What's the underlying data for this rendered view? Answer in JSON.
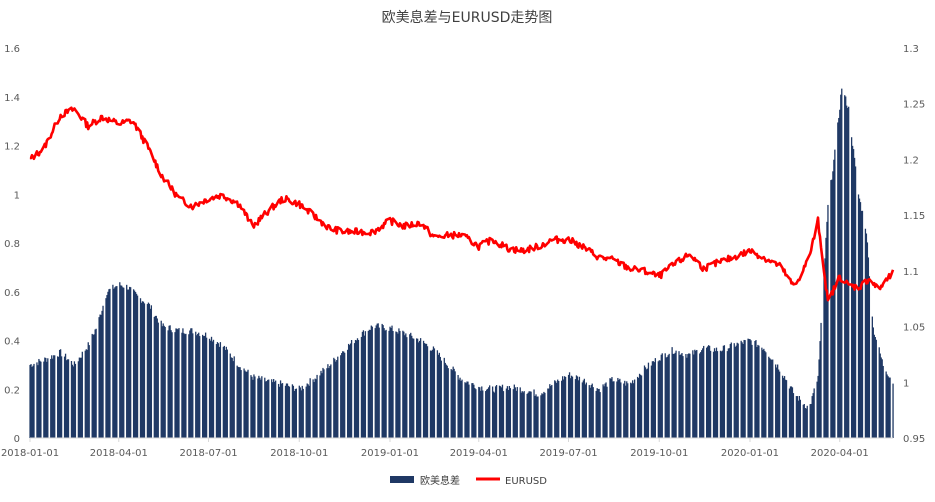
{
  "chart_data": {
    "type": "bar+line",
    "title": "欧美息差与EURUSD走势图",
    "x_ticks": [
      "2018-01-01",
      "2018-04-01",
      "2018-07-01",
      "2018-10-01",
      "2019-01-01",
      "2019-04-01",
      "2019-07-01",
      "2019-10-01",
      "2020-01-01",
      "2020-04-01"
    ],
    "left_axis": {
      "ticks": [
        "0",
        "0.2",
        "0.4",
        "0.6",
        "0.8",
        "1",
        "1.2",
        "1.4",
        "1.6"
      ],
      "min": 0,
      "max": 1.6
    },
    "right_axis": {
      "ticks": [
        "0.95",
        "1",
        "1.05",
        "1.1",
        "1.15",
        "1.2",
        "1.25",
        "1.3"
      ],
      "min": 0.95,
      "max": 1.3
    },
    "x_range": [
      "2018-01-01",
      "2020-05-25"
    ],
    "series": [
      {
        "name": "欧美息差",
        "kind": "bar",
        "axis": "left",
        "color": "#1f3864",
        "points": [
          [
            "2018-01-01",
            0.3
          ],
          [
            "2018-01-15",
            0.32
          ],
          [
            "2018-02-01",
            0.35
          ],
          [
            "2018-02-15",
            0.3
          ],
          [
            "2018-03-01",
            0.38
          ],
          [
            "2018-03-10",
            0.46
          ],
          [
            "2018-03-20",
            0.6
          ],
          [
            "2018-04-01",
            0.63
          ],
          [
            "2018-04-10",
            0.62
          ],
          [
            "2018-04-20",
            0.58
          ],
          [
            "2018-05-01",
            0.55
          ],
          [
            "2018-05-15",
            0.46
          ],
          [
            "2018-06-01",
            0.44
          ],
          [
            "2018-06-15",
            0.44
          ],
          [
            "2018-07-01",
            0.42
          ],
          [
            "2018-07-15",
            0.38
          ],
          [
            "2018-08-01",
            0.3
          ],
          [
            "2018-08-15",
            0.25
          ],
          [
            "2018-09-01",
            0.23
          ],
          [
            "2018-09-15",
            0.22
          ],
          [
            "2018-10-01",
            0.2
          ],
          [
            "2018-10-15",
            0.24
          ],
          [
            "2018-11-01",
            0.3
          ],
          [
            "2018-11-15",
            0.36
          ],
          [
            "2018-12-01",
            0.42
          ],
          [
            "2018-12-15",
            0.46
          ],
          [
            "2019-01-01",
            0.45
          ],
          [
            "2019-01-15",
            0.43
          ],
          [
            "2019-02-01",
            0.4
          ],
          [
            "2019-02-15",
            0.36
          ],
          [
            "2019-03-01",
            0.3
          ],
          [
            "2019-03-15",
            0.24
          ],
          [
            "2019-04-01",
            0.21
          ],
          [
            "2019-04-15",
            0.2
          ],
          [
            "2019-05-01",
            0.21
          ],
          [
            "2019-05-15",
            0.2
          ],
          [
            "2019-06-01",
            0.18
          ],
          [
            "2019-06-15",
            0.22
          ],
          [
            "2019-07-01",
            0.26
          ],
          [
            "2019-07-15",
            0.24
          ],
          [
            "2019-08-01",
            0.2
          ],
          [
            "2019-08-15",
            0.24
          ],
          [
            "2019-09-01",
            0.22
          ],
          [
            "2019-09-15",
            0.28
          ],
          [
            "2019-10-01",
            0.33
          ],
          [
            "2019-10-15",
            0.36
          ],
          [
            "2019-11-01",
            0.34
          ],
          [
            "2019-11-15",
            0.37
          ],
          [
            "2019-12-01",
            0.36
          ],
          [
            "2019-12-15",
            0.38
          ],
          [
            "2020-01-01",
            0.4
          ],
          [
            "2020-01-15",
            0.37
          ],
          [
            "2020-02-01",
            0.28
          ],
          [
            "2020-02-15",
            0.18
          ],
          [
            "2020-03-01",
            0.12
          ],
          [
            "2020-03-10",
            0.25
          ],
          [
            "2020-03-20",
            0.95
          ],
          [
            "2020-03-28",
            1.2
          ],
          [
            "2020-04-03",
            1.44
          ],
          [
            "2020-04-10",
            1.35
          ],
          [
            "2020-04-20",
            1.0
          ],
          [
            "2020-04-28",
            0.85
          ],
          [
            "2020-05-05",
            0.45
          ],
          [
            "2020-05-15",
            0.3
          ],
          [
            "2020-05-25",
            0.23
          ]
        ]
      },
      {
        "name": "EURUSD",
        "kind": "line",
        "axis": "right",
        "color": "#ff0000",
        "points": [
          [
            "2018-01-01",
            1.2
          ],
          [
            "2018-01-15",
            1.21
          ],
          [
            "2018-02-01",
            1.24
          ],
          [
            "2018-02-15",
            1.245
          ],
          [
            "2018-03-01",
            1.23
          ],
          [
            "2018-03-15",
            1.238
          ],
          [
            "2018-04-01",
            1.232
          ],
          [
            "2018-04-15",
            1.235
          ],
          [
            "2018-05-01",
            1.21
          ],
          [
            "2018-05-15",
            1.185
          ],
          [
            "2018-06-01",
            1.165
          ],
          [
            "2018-06-15",
            1.158
          ],
          [
            "2018-07-01",
            1.165
          ],
          [
            "2018-07-15",
            1.168
          ],
          [
            "2018-08-01",
            1.16
          ],
          [
            "2018-08-15",
            1.14
          ],
          [
            "2018-09-01",
            1.155
          ],
          [
            "2018-09-15",
            1.165
          ],
          [
            "2018-10-01",
            1.16
          ],
          [
            "2018-10-15",
            1.15
          ],
          [
            "2018-11-01",
            1.138
          ],
          [
            "2018-11-15",
            1.135
          ],
          [
            "2018-12-01",
            1.135
          ],
          [
            "2018-12-15",
            1.135
          ],
          [
            "2019-01-01",
            1.145
          ],
          [
            "2019-01-15",
            1.14
          ],
          [
            "2019-02-01",
            1.143
          ],
          [
            "2019-02-15",
            1.13
          ],
          [
            "2019-03-01",
            1.132
          ],
          [
            "2019-03-15",
            1.132
          ],
          [
            "2019-04-01",
            1.122
          ],
          [
            "2019-04-15",
            1.128
          ],
          [
            "2019-05-01",
            1.12
          ],
          [
            "2019-05-15",
            1.118
          ],
          [
            "2019-06-01",
            1.122
          ],
          [
            "2019-06-15",
            1.128
          ],
          [
            "2019-07-01",
            1.128
          ],
          [
            "2019-07-15",
            1.122
          ],
          [
            "2019-08-01",
            1.112
          ],
          [
            "2019-08-15",
            1.11
          ],
          [
            "2019-09-01",
            1.102
          ],
          [
            "2019-09-15",
            1.1
          ],
          [
            "2019-10-01",
            1.095
          ],
          [
            "2019-10-15",
            1.105
          ],
          [
            "2019-11-01",
            1.115
          ],
          [
            "2019-11-15",
            1.102
          ],
          [
            "2019-12-01",
            1.108
          ],
          [
            "2019-12-15",
            1.112
          ],
          [
            "2020-01-01",
            1.118
          ],
          [
            "2020-01-15",
            1.112
          ],
          [
            "2020-02-01",
            1.104
          ],
          [
            "2020-02-15",
            1.085
          ],
          [
            "2020-03-01",
            1.112
          ],
          [
            "2020-03-10",
            1.145
          ],
          [
            "2020-03-20",
            1.072
          ],
          [
            "2020-04-01",
            1.095
          ],
          [
            "2020-04-10",
            1.087
          ],
          [
            "2020-04-20",
            1.085
          ],
          [
            "2020-05-01",
            1.093
          ],
          [
            "2020-05-10",
            1.083
          ],
          [
            "2020-05-20",
            1.093
          ],
          [
            "2020-05-25",
            1.098
          ]
        ]
      }
    ],
    "legend_position": "bottom-center",
    "grid": false
  }
}
